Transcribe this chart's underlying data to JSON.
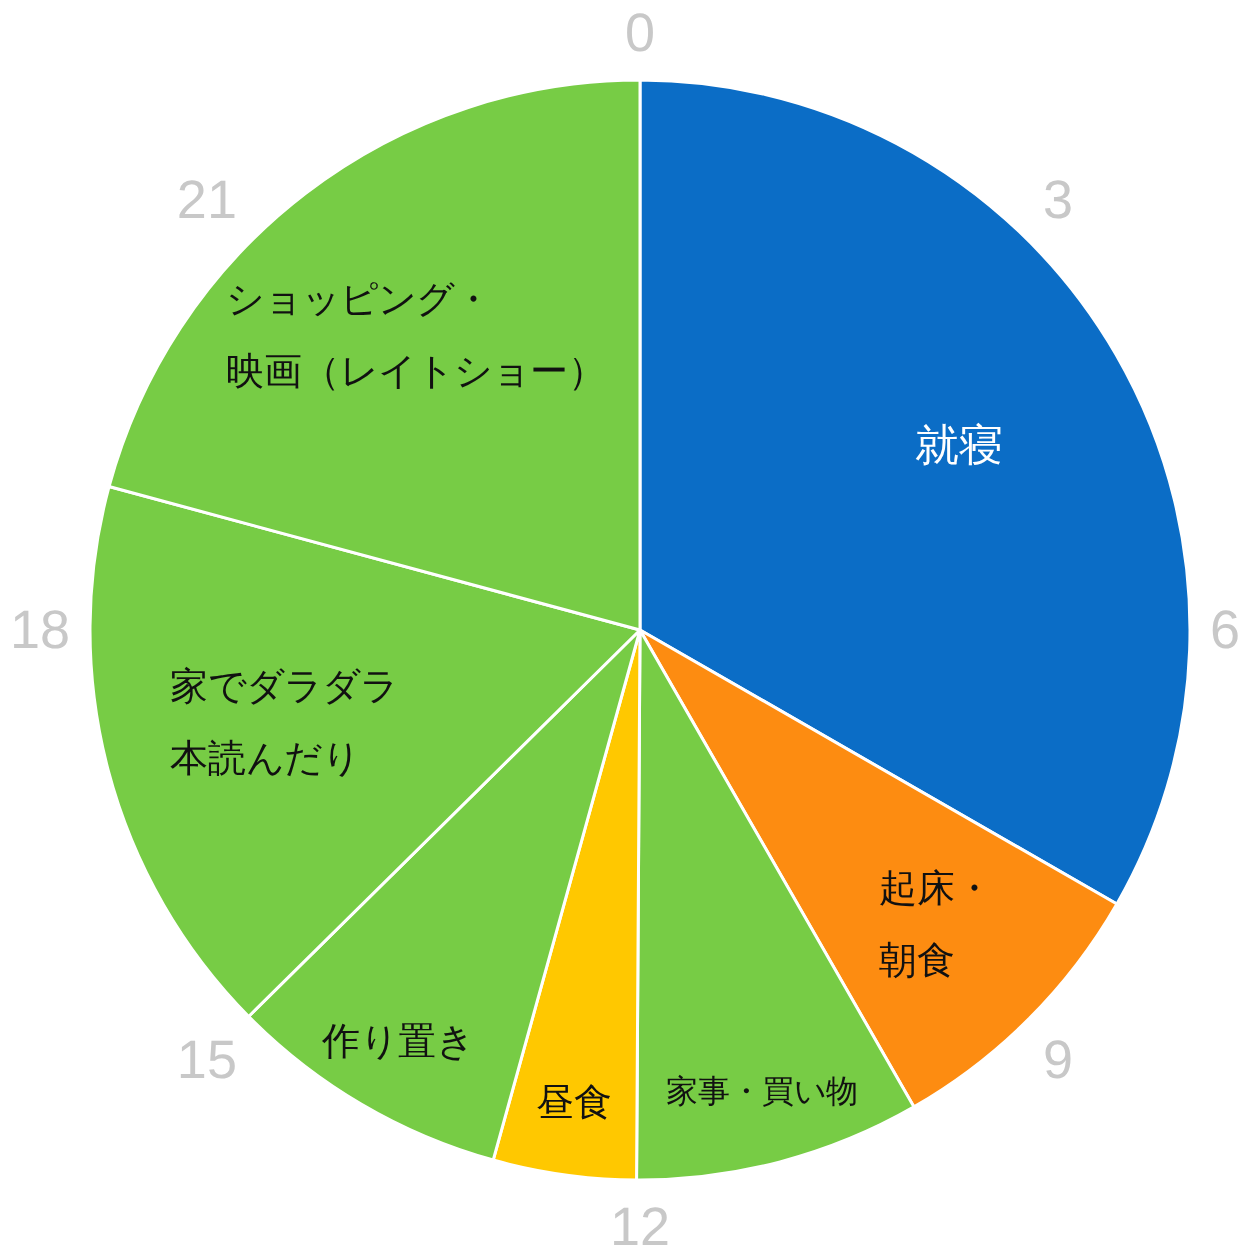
{
  "chart_data": {
    "type": "pie",
    "categories": [
      "就寝",
      "起床・朝食",
      "家事・買い物",
      "昼食",
      "作り置き",
      "家でダラダラ本読んだり",
      "ショッピング・映画（レイトショー）"
    ],
    "values": [
      33.3,
      8.4,
      8.4,
      4.2,
      8.3,
      16.6,
      20.8
    ],
    "colors": [
      "#0b6dc6",
      "#fd8c11",
      "#77cc45",
      "#ffc800",
      "#77cc45",
      "#77cc45",
      "#77cc45"
    ],
    "annotations": [
      "0",
      "3",
      "6",
      "9",
      "12",
      "15",
      "18",
      "21"
    ]
  }
}
